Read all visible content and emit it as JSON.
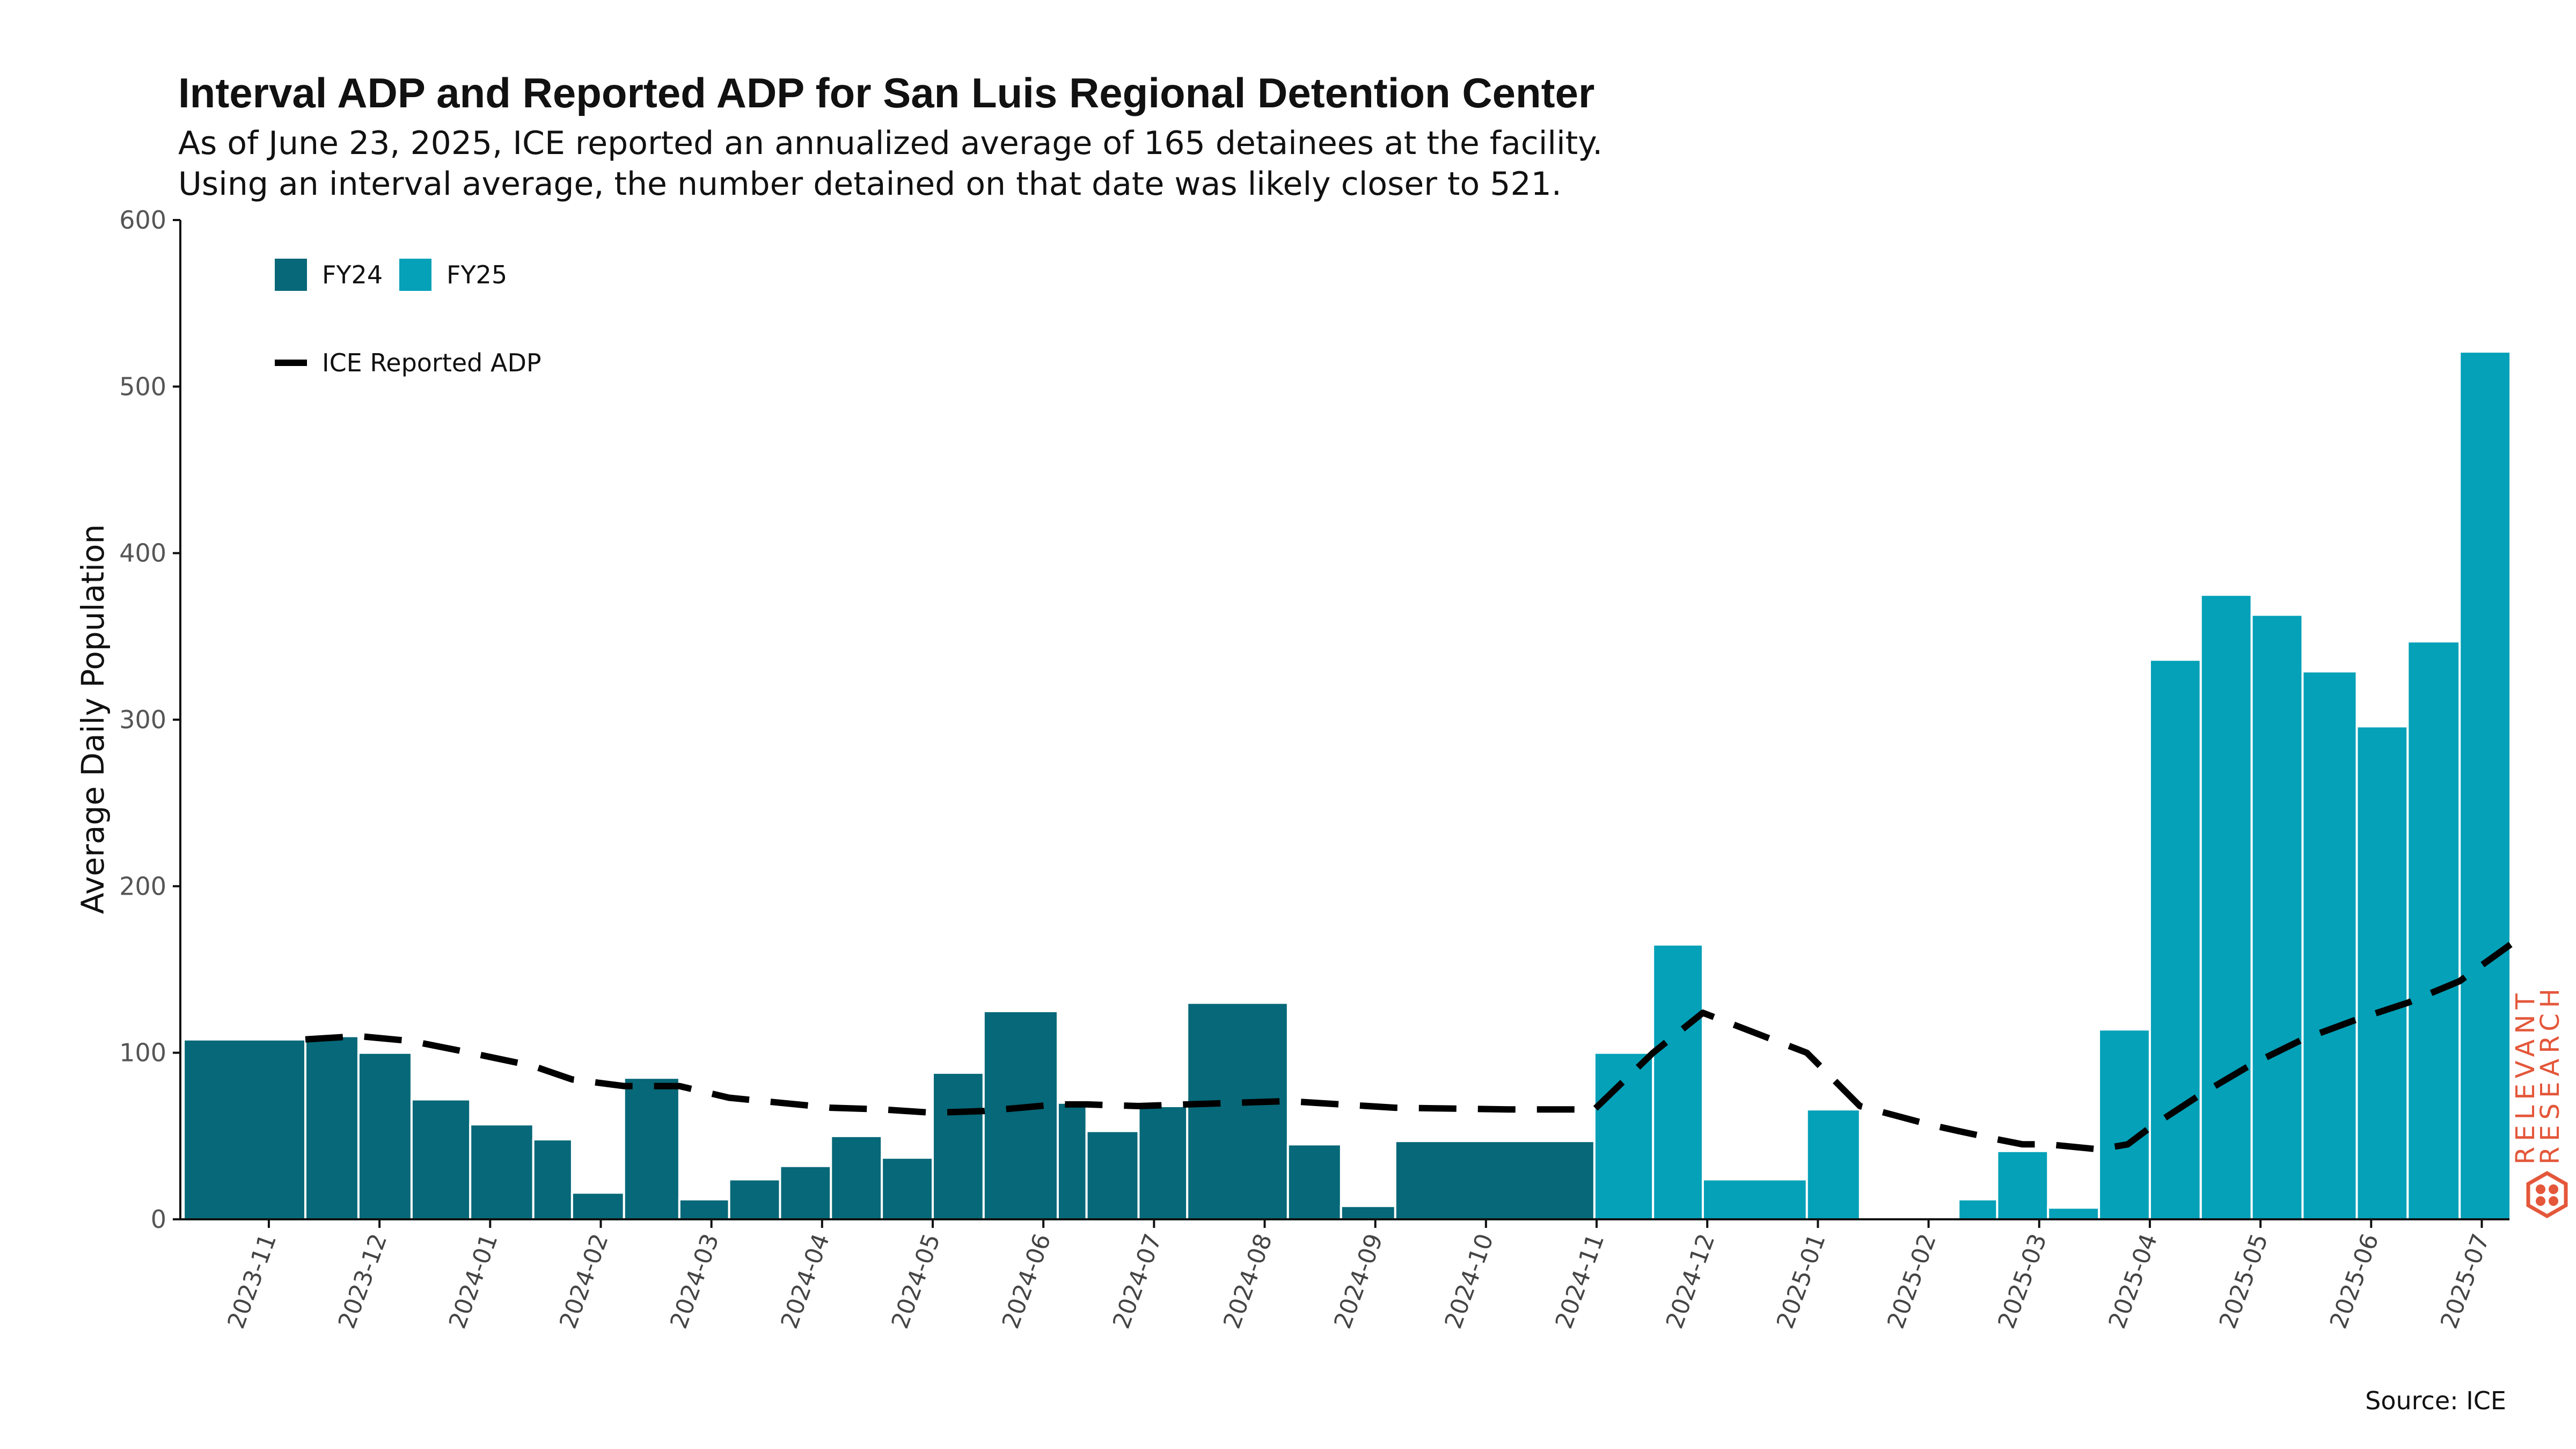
{
  "title": "Interval ADP and Reported ADP for San Luis Regional Detention Center",
  "subtitle_lines": [
    "As of June 23, 2025, ICE reported an annualized average of 165 detainees at the facility.",
    "Using an interval average, the number detained on that date was likely closer to 521."
  ],
  "source": "Source: ICE",
  "brand": {
    "line1": "RELEVANT",
    "line2": "RESEARCH",
    "color": "#e4573a"
  },
  "chart_data": {
    "type": "bar",
    "title": "Interval ADP and Reported ADP for San Luis Regional Detention Center",
    "xlabel": "",
    "ylabel": "Average Daily Population",
    "ylim": [
      0,
      600
    ],
    "yticks": [
      0,
      100,
      200,
      300,
      400,
      500,
      600
    ],
    "xlim_months": [
      -0.8,
      20.25
    ],
    "xticks": [
      {
        "label": "2023-11",
        "m": 0
      },
      {
        "label": "2023-12",
        "m": 1
      },
      {
        "label": "2024-01",
        "m": 2
      },
      {
        "label": "2024-02",
        "m": 3
      },
      {
        "label": "2024-03",
        "m": 4
      },
      {
        "label": "2024-04",
        "m": 5
      },
      {
        "label": "2024-05",
        "m": 6
      },
      {
        "label": "2024-06",
        "m": 7
      },
      {
        "label": "2024-07",
        "m": 8
      },
      {
        "label": "2024-08",
        "m": 9
      },
      {
        "label": "2024-09",
        "m": 10
      },
      {
        "label": "2024-10",
        "m": 11
      },
      {
        "label": "2024-11",
        "m": 12
      },
      {
        "label": "2024-12",
        "m": 13
      },
      {
        "label": "2025-01",
        "m": 14
      },
      {
        "label": "2025-02",
        "m": 15
      },
      {
        "label": "2025-03",
        "m": 16
      },
      {
        "label": "2025-04",
        "m": 17
      },
      {
        "label": "2025-05",
        "m": 18
      },
      {
        "label": "2025-06",
        "m": 19
      },
      {
        "label": "2025-07",
        "m": 20
      }
    ],
    "legend": {
      "placement": "top-left",
      "fy": [
        {
          "name": "FY24",
          "color": "#066878"
        },
        {
          "name": "FY25",
          "color": "#04a1b8"
        }
      ],
      "line": {
        "name": "ICE Reported ADP",
        "color": "#000000"
      }
    },
    "series": [
      {
        "name": "FY24",
        "color": "#066878",
        "intervals": [
          {
            "start": -0.77,
            "end": 0.33,
            "value": 108
          },
          {
            "start": 0.33,
            "end": 0.81,
            "value": 110
          },
          {
            "start": 0.81,
            "end": 1.29,
            "value": 100
          },
          {
            "start": 1.29,
            "end": 1.82,
            "value": 72
          },
          {
            "start": 1.82,
            "end": 2.39,
            "value": 57
          },
          {
            "start": 2.39,
            "end": 2.74,
            "value": 48
          },
          {
            "start": 2.74,
            "end": 3.21,
            "value": 16
          },
          {
            "start": 3.21,
            "end": 3.71,
            "value": 85
          },
          {
            "start": 3.71,
            "end": 4.16,
            "value": 12
          },
          {
            "start": 4.16,
            "end": 4.62,
            "value": 24
          },
          {
            "start": 4.62,
            "end": 5.08,
            "value": 32
          },
          {
            "start": 5.08,
            "end": 5.54,
            "value": 50
          },
          {
            "start": 5.54,
            "end": 6.0,
            "value": 37
          },
          {
            "start": 6.0,
            "end": 6.46,
            "value": 88
          },
          {
            "start": 6.46,
            "end": 7.13,
            "value": 125
          },
          {
            "start": 7.13,
            "end": 7.39,
            "value": 70
          },
          {
            "start": 7.39,
            "end": 7.86,
            "value": 53
          },
          {
            "start": 7.86,
            "end": 8.3,
            "value": 68
          },
          {
            "start": 8.3,
            "end": 9.21,
            "value": 130
          },
          {
            "start": 9.21,
            "end": 9.69,
            "value": 45
          },
          {
            "start": 9.69,
            "end": 10.18,
            "value": 8
          },
          {
            "start": 10.18,
            "end": 11.98,
            "value": 47
          }
        ]
      },
      {
        "name": "FY25",
        "color": "#04a1b8",
        "intervals": [
          {
            "start": 11.98,
            "end": 12.51,
            "value": 100
          },
          {
            "start": 12.51,
            "end": 12.96,
            "value": 165
          },
          {
            "start": 12.96,
            "end": 13.9,
            "value": 24
          },
          {
            "start": 13.9,
            "end": 14.38,
            "value": 66
          },
          {
            "start": 15.27,
            "end": 15.62,
            "value": 12
          },
          {
            "start": 15.62,
            "end": 16.08,
            "value": 41
          },
          {
            "start": 16.08,
            "end": 16.54,
            "value": 7
          },
          {
            "start": 16.54,
            "end": 17.0,
            "value": 114
          },
          {
            "start": 17.0,
            "end": 17.46,
            "value": 336
          },
          {
            "start": 17.46,
            "end": 17.92,
            "value": 375
          },
          {
            "start": 17.92,
            "end": 18.38,
            "value": 363
          },
          {
            "start": 18.38,
            "end": 18.87,
            "value": 329
          },
          {
            "start": 18.87,
            "end": 19.33,
            "value": 296
          },
          {
            "start": 19.33,
            "end": 19.8,
            "value": 347
          },
          {
            "start": 19.8,
            "end": 20.26,
            "value": 521
          }
        ]
      },
      {
        "name": "ICE Reported ADP",
        "type": "line",
        "color": "#000000",
        "points": [
          {
            "m": 0.33,
            "value": 108
          },
          {
            "m": 0.81,
            "value": 110
          },
          {
            "m": 1.29,
            "value": 107
          },
          {
            "m": 1.82,
            "value": 100
          },
          {
            "m": 2.39,
            "value": 92
          },
          {
            "m": 2.74,
            "value": 84
          },
          {
            "m": 3.21,
            "value": 80
          },
          {
            "m": 3.71,
            "value": 80
          },
          {
            "m": 4.16,
            "value": 73
          },
          {
            "m": 4.62,
            "value": 70
          },
          {
            "m": 5.08,
            "value": 67
          },
          {
            "m": 5.54,
            "value": 66
          },
          {
            "m": 6.0,
            "value": 64
          },
          {
            "m": 6.46,
            "value": 65
          },
          {
            "m": 7.13,
            "value": 69
          },
          {
            "m": 7.39,
            "value": 69
          },
          {
            "m": 7.86,
            "value": 68
          },
          {
            "m": 8.3,
            "value": 69
          },
          {
            "m": 9.21,
            "value": 71
          },
          {
            "m": 9.69,
            "value": 69
          },
          {
            "m": 10.18,
            "value": 67
          },
          {
            "m": 11.2,
            "value": 66
          },
          {
            "m": 11.98,
            "value": 66
          },
          {
            "m": 12.51,
            "value": 100
          },
          {
            "m": 12.96,
            "value": 124
          },
          {
            "m": 13.9,
            "value": 100
          },
          {
            "m": 14.38,
            "value": 68
          },
          {
            "m": 15.0,
            "value": 57
          },
          {
            "m": 15.27,
            "value": 53
          },
          {
            "m": 15.62,
            "value": 48
          },
          {
            "m": 15.85,
            "value": 45
          },
          {
            "m": 16.08,
            "value": 45
          },
          {
            "m": 16.54,
            "value": 42
          },
          {
            "m": 16.8,
            "value": 45
          },
          {
            "m": 17.0,
            "value": 55
          },
          {
            "m": 17.46,
            "value": 75
          },
          {
            "m": 17.92,
            "value": 93
          },
          {
            "m": 18.38,
            "value": 108
          },
          {
            "m": 18.87,
            "value": 120
          },
          {
            "m": 19.33,
            "value": 130
          },
          {
            "m": 19.8,
            "value": 143
          },
          {
            "m": 20.26,
            "value": 165
          }
        ]
      }
    ]
  }
}
